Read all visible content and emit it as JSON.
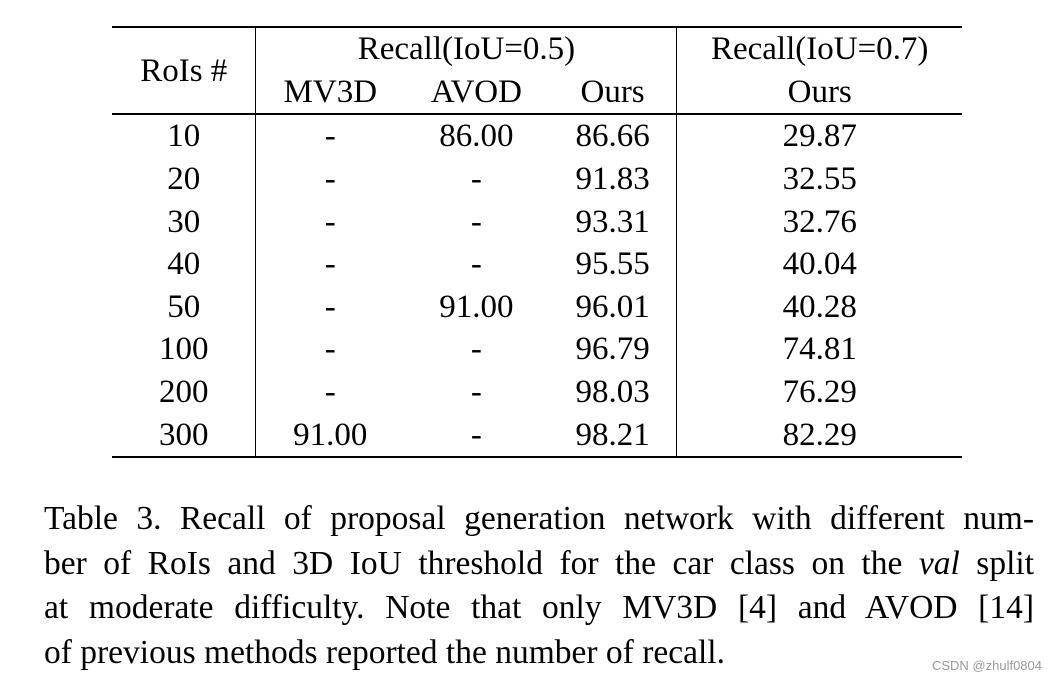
{
  "table": {
    "header": {
      "rois_label": "RoIs #",
      "group1_label": "Recall(IoU=0.5)",
      "group2_label": "Recall(IoU=0.7)",
      "sub_mv3d": "MV3D",
      "sub_avod": "AVOD",
      "sub_ours": "Ours",
      "sub_ours7": "Ours"
    },
    "rows": [
      {
        "rois": "10",
        "mv3d": "-",
        "avod": "86.00",
        "ours": "86.66",
        "ours7": "29.87"
      },
      {
        "rois": "20",
        "mv3d": "-",
        "avod": "-",
        "ours": "91.83",
        "ours7": "32.55"
      },
      {
        "rois": "30",
        "mv3d": "-",
        "avod": "-",
        "ours": "93.31",
        "ours7": "32.76"
      },
      {
        "rois": "40",
        "mv3d": "-",
        "avod": "-",
        "ours": "95.55",
        "ours7": "40.04"
      },
      {
        "rois": "50",
        "mv3d": "-",
        "avod": "91.00",
        "ours": "96.01",
        "ours7": "40.28"
      },
      {
        "rois": "100",
        "mv3d": "-",
        "avod": "-",
        "ours": "96.79",
        "ours7": "74.81"
      },
      {
        "rois": "200",
        "mv3d": "-",
        "avod": "-",
        "ours": "98.03",
        "ours7": "76.29"
      },
      {
        "rois": "300",
        "mv3d": "91.00",
        "avod": "-",
        "ours": "98.21",
        "ours7": "82.29"
      }
    ]
  },
  "caption": {
    "line1": "Table 3. Recall of proposal generation network with different num-",
    "line2_pre": "ber of RoIs and 3D IoU threshold for the car class on the ",
    "line2_em": "val",
    "line2_post": " split",
    "line3": "at moderate difficulty.  Note that only MV3D [4] and AVOD [14]",
    "line4": "of previous methods reported the number of recall."
  },
  "watermark": "CSDN @zhulf0804"
}
